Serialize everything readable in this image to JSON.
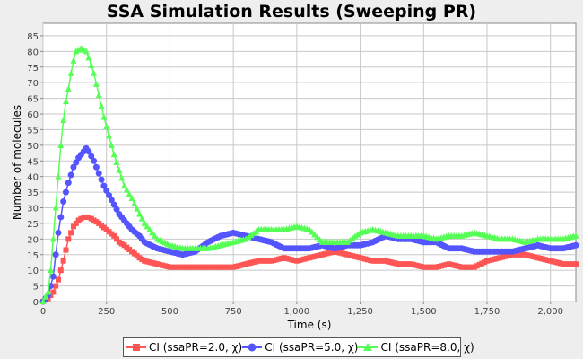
{
  "chart_data": {
    "type": "scatter",
    "title": "SSA Simulation Results (Sweeping PR)",
    "xlabel": "Time (s)",
    "ylabel": "Number of molecules",
    "xlim": [
      0,
      2100
    ],
    "ylim": [
      0,
      89
    ],
    "x_ticks": [
      "0",
      "250",
      "500",
      "750",
      "1,000",
      "1,250",
      "1,500",
      "1,750",
      "2,000"
    ],
    "y_ticks": [
      "0",
      "5",
      "10",
      "15",
      "20",
      "25",
      "30",
      "35",
      "40",
      "45",
      "50",
      "55",
      "60",
      "65",
      "70",
      "75",
      "80",
      "85"
    ],
    "grid": true,
    "legend_position": "bottom",
    "series": [
      {
        "name": "CI (ssaPR=2.0, χ)",
        "color": "#ff5555",
        "marker": "square",
        "points": [
          [
            0,
            0
          ],
          [
            20,
            1
          ],
          [
            40,
            3
          ],
          [
            60,
            7
          ],
          [
            80,
            13
          ],
          [
            100,
            20
          ],
          [
            120,
            24
          ],
          [
            140,
            26
          ],
          [
            160,
            27
          ],
          [
            180,
            27
          ],
          [
            200,
            26
          ],
          [
            220,
            25
          ],
          [
            250,
            23
          ],
          [
            280,
            21
          ],
          [
            300,
            19
          ],
          [
            320,
            18
          ],
          [
            350,
            16
          ],
          [
            380,
            14
          ],
          [
            400,
            13
          ],
          [
            450,
            12
          ],
          [
            500,
            11
          ],
          [
            550,
            11
          ],
          [
            600,
            11
          ],
          [
            650,
            11
          ],
          [
            700,
            11
          ],
          [
            750,
            11
          ],
          [
            800,
            12
          ],
          [
            850,
            13
          ],
          [
            900,
            13
          ],
          [
            950,
            14
          ],
          [
            1000,
            13
          ],
          [
            1050,
            14
          ],
          [
            1100,
            15
          ],
          [
            1150,
            16
          ],
          [
            1200,
            15
          ],
          [
            1250,
            14
          ],
          [
            1300,
            13
          ],
          [
            1350,
            13
          ],
          [
            1400,
            12
          ],
          [
            1450,
            12
          ],
          [
            1500,
            11
          ],
          [
            1550,
            11
          ],
          [
            1600,
            12
          ],
          [
            1650,
            11
          ],
          [
            1700,
            11
          ],
          [
            1750,
            13
          ],
          [
            1800,
            14
          ],
          [
            1850,
            15
          ],
          [
            1900,
            15
          ],
          [
            1950,
            14
          ],
          [
            2000,
            13
          ],
          [
            2050,
            12
          ],
          [
            2100,
            12
          ]
        ]
      },
      {
        "name": "CI (ssaPR=5.0, χ)",
        "color": "#5555ff",
        "marker": "circle",
        "points": [
          [
            0,
            0
          ],
          [
            20,
            2
          ],
          [
            30,
            5
          ],
          [
            40,
            8
          ],
          [
            50,
            15
          ],
          [
            60,
            22
          ],
          [
            70,
            27
          ],
          [
            80,
            32
          ],
          [
            90,
            35
          ],
          [
            100,
            38
          ],
          [
            120,
            43
          ],
          [
            140,
            46
          ],
          [
            160,
            48
          ],
          [
            170,
            49
          ],
          [
            180,
            48
          ],
          [
            200,
            45
          ],
          [
            220,
            41
          ],
          [
            240,
            37
          ],
          [
            260,
            34
          ],
          [
            280,
            31
          ],
          [
            300,
            28
          ],
          [
            320,
            26
          ],
          [
            350,
            23
          ],
          [
            380,
            21
          ],
          [
            400,
            19
          ],
          [
            450,
            17
          ],
          [
            500,
            16
          ],
          [
            550,
            15
          ],
          [
            600,
            16
          ],
          [
            650,
            19
          ],
          [
            700,
            21
          ],
          [
            750,
            22
          ],
          [
            800,
            21
          ],
          [
            850,
            20
          ],
          [
            900,
            19
          ],
          [
            950,
            17
          ],
          [
            1000,
            17
          ],
          [
            1050,
            17
          ],
          [
            1100,
            18
          ],
          [
            1150,
            17
          ],
          [
            1200,
            18
          ],
          [
            1250,
            18
          ],
          [
            1300,
            19
          ],
          [
            1350,
            21
          ],
          [
            1400,
            20
          ],
          [
            1450,
            20
          ],
          [
            1500,
            19
          ],
          [
            1550,
            19
          ],
          [
            1600,
            17
          ],
          [
            1650,
            17
          ],
          [
            1700,
            16
          ],
          [
            1750,
            16
          ],
          [
            1800,
            16
          ],
          [
            1850,
            16
          ],
          [
            1900,
            17
          ],
          [
            1950,
            18
          ],
          [
            2000,
            17
          ],
          [
            2050,
            17
          ],
          [
            2100,
            18
          ]
        ]
      },
      {
        "name": "CI (ssaPR=8.0, χ)",
        "color": "#55ff55",
        "marker": "triangle",
        "points": [
          [
            0,
            0
          ],
          [
            20,
            3
          ],
          [
            30,
            10
          ],
          [
            40,
            20
          ],
          [
            50,
            30
          ],
          [
            60,
            40
          ],
          [
            70,
            50
          ],
          [
            80,
            58
          ],
          [
            90,
            64
          ],
          [
            100,
            68
          ],
          [
            110,
            73
          ],
          [
            120,
            77
          ],
          [
            130,
            80
          ],
          [
            150,
            81
          ],
          [
            170,
            80
          ],
          [
            180,
            78
          ],
          [
            200,
            73
          ],
          [
            220,
            66
          ],
          [
            240,
            59
          ],
          [
            260,
            53
          ],
          [
            280,
            47
          ],
          [
            300,
            42
          ],
          [
            320,
            37
          ],
          [
            350,
            33
          ],
          [
            380,
            28
          ],
          [
            400,
            25
          ],
          [
            450,
            20
          ],
          [
            500,
            18
          ],
          [
            550,
            17
          ],
          [
            600,
            17
          ],
          [
            650,
            17
          ],
          [
            700,
            18
          ],
          [
            750,
            19
          ],
          [
            800,
            20
          ],
          [
            850,
            23
          ],
          [
            900,
            23
          ],
          [
            950,
            23
          ],
          [
            1000,
            24
          ],
          [
            1050,
            23
          ],
          [
            1100,
            19
          ],
          [
            1150,
            19
          ],
          [
            1200,
            19
          ],
          [
            1250,
            22
          ],
          [
            1300,
            23
          ],
          [
            1350,
            22
          ],
          [
            1400,
            21
          ],
          [
            1450,
            21
          ],
          [
            1500,
            21
          ],
          [
            1550,
            20
          ],
          [
            1600,
            21
          ],
          [
            1650,
            21
          ],
          [
            1700,
            22
          ],
          [
            1750,
            21
          ],
          [
            1800,
            20
          ],
          [
            1850,
            20
          ],
          [
            1900,
            19
          ],
          [
            1950,
            20
          ],
          [
            2000,
            20
          ],
          [
            2050,
            20
          ],
          [
            2100,
            21
          ]
        ]
      }
    ]
  }
}
